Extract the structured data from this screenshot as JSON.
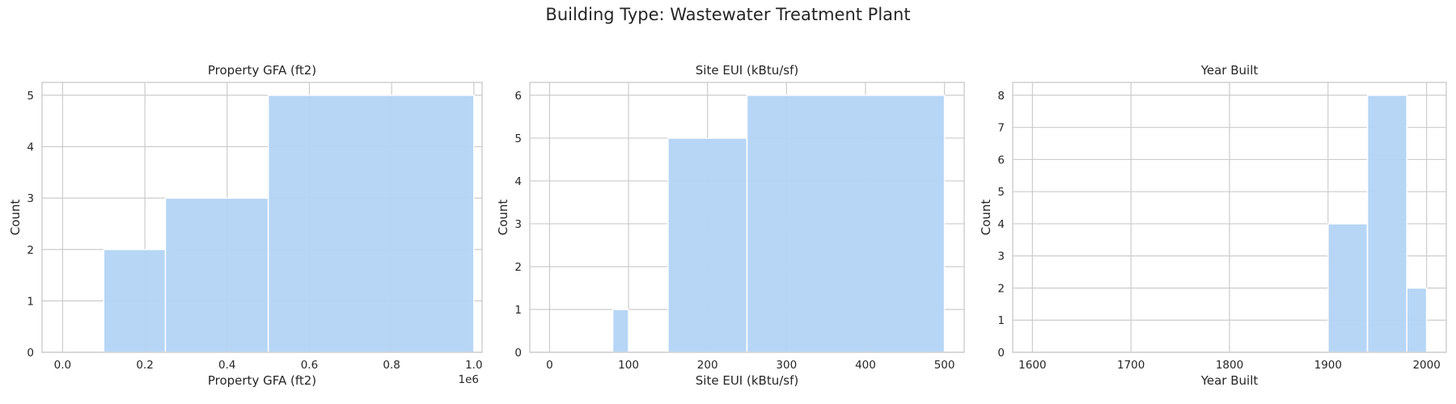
{
  "figure": {
    "title": "Building Type: Wastewater Treatment Plant"
  },
  "chart_data": [
    {
      "type": "bar",
      "title": "Property GFA (ft2)",
      "xlabel": "Property GFA (ft2)",
      "ylabel": "Count",
      "offset_label": "1e6",
      "xlim": [
        -0.05,
        1.02
      ],
      "ylim": [
        0,
        5.25
      ],
      "xticks": [
        0.0,
        0.2,
        0.4,
        0.6,
        0.8,
        1.0
      ],
      "xtick_labels": [
        "0.0",
        "0.2",
        "0.4",
        "0.6",
        "0.8",
        "1.0"
      ],
      "yticks": [
        0,
        1,
        2,
        3,
        4,
        5
      ],
      "ytick_labels": [
        "0",
        "1",
        "2",
        "3",
        "4",
        "5"
      ],
      "grid": true,
      "bins": [
        {
          "x0": 0.1,
          "x1": 0.25,
          "count": 2
        },
        {
          "x0": 0.25,
          "x1": 0.5,
          "count": 3
        },
        {
          "x0": 0.5,
          "x1": 1.0,
          "count": 5
        }
      ]
    },
    {
      "type": "bar",
      "title": "Site EUI (kBtu/sf)",
      "xlabel": "Site EUI (kBtu/sf)",
      "ylabel": "Count",
      "xlim": [
        -25,
        525
      ],
      "ylim": [
        0,
        6.3
      ],
      "xticks": [
        0,
        100,
        200,
        300,
        400,
        500
      ],
      "xtick_labels": [
        "0",
        "100",
        "200",
        "300",
        "400",
        "500"
      ],
      "yticks": [
        0,
        1,
        2,
        3,
        4,
        5,
        6
      ],
      "ytick_labels": [
        "0",
        "1",
        "2",
        "3",
        "4",
        "5",
        "6"
      ],
      "grid": true,
      "bins": [
        {
          "x0": 80,
          "x1": 100,
          "count": 1
        },
        {
          "x0": 150,
          "x1": 250,
          "count": 5
        },
        {
          "x0": 250,
          "x1": 500,
          "count": 6
        }
      ]
    },
    {
      "type": "bar",
      "title": "Year Built",
      "xlabel": "Year Built",
      "ylabel": "Count",
      "xlim": [
        1580,
        2020
      ],
      "ylim": [
        0,
        8.4
      ],
      "xticks": [
        1600,
        1700,
        1800,
        1900,
        2000
      ],
      "xtick_labels": [
        "1600",
        "1700",
        "1800",
        "1900",
        "2000"
      ],
      "yticks": [
        0,
        1,
        2,
        3,
        4,
        5,
        6,
        7,
        8
      ],
      "ytick_labels": [
        "0",
        "1",
        "2",
        "3",
        "4",
        "5",
        "6",
        "7",
        "8"
      ],
      "grid": true,
      "bins": [
        {
          "x0": 1900,
          "x1": 1940,
          "count": 4
        },
        {
          "x0": 1940,
          "x1": 1980,
          "count": 8
        },
        {
          "x0": 1980,
          "x1": 2000,
          "count": 2
        }
      ]
    }
  ]
}
